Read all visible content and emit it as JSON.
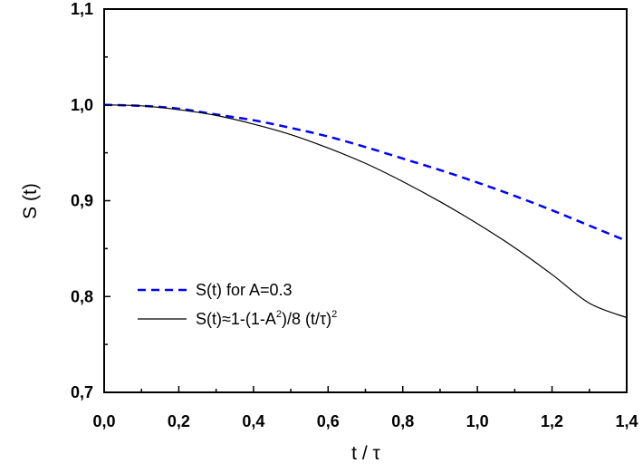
{
  "chart_data": {
    "type": "line",
    "title": "",
    "xlabel": "t / τ",
    "ylabel": "S (t)",
    "xlim": [
      0.0,
      1.4
    ],
    "ylim": [
      0.7,
      1.1
    ],
    "xticks": [
      0.0,
      0.2,
      0.4,
      0.6,
      0.8,
      1.0,
      1.2,
      1.4
    ],
    "xtick_labels": [
      "0,0",
      "0,2",
      "0,4",
      "0,6",
      "0,8",
      "1,0",
      "1,2",
      "1,4"
    ],
    "yticks": [
      0.7,
      0.8,
      0.9,
      1.0,
      1.1
    ],
    "ytick_labels": [
      "0,7",
      "0,8",
      "0,9",
      "1,0",
      "1,1"
    ],
    "grid": false,
    "legend_position": "lower-left",
    "series": [
      {
        "name": "S(t) for A=0.3",
        "legend_parts": [
          "S(t) for A=0.3"
        ],
        "color": "#0000ff",
        "dash": "dashed",
        "x": [
          0.0,
          0.1,
          0.2,
          0.3,
          0.4,
          0.5,
          0.6,
          0.7,
          0.8,
          0.9,
          1.0,
          1.1,
          1.2,
          1.3,
          1.4
        ],
        "y": [
          1.0,
          0.999,
          0.996,
          0.99,
          0.984,
          0.976,
          0.967,
          0.956,
          0.944,
          0.932,
          0.919,
          0.905,
          0.89,
          0.874,
          0.858
        ]
      },
      {
        "name": "S(t)≈1-(1-A2)/8 (t/τ)2",
        "legend_parts": [
          "S(t)≈1-(1-A",
          "2",
          ")/8 (t/τ)",
          "2"
        ],
        "color": "#000000",
        "dash": "solid",
        "x": [
          0.0,
          0.1,
          0.2,
          0.3,
          0.4,
          0.5,
          0.6,
          0.7,
          0.8,
          0.9,
          1.0,
          1.1,
          1.2,
          1.3,
          1.4
        ],
        "y": [
          1.0,
          0.999,
          0.995,
          0.989,
          0.98,
          0.969,
          0.955,
          0.939,
          0.92,
          0.899,
          0.876,
          0.851,
          0.823,
          0.793,
          0.778
        ]
      }
    ]
  }
}
